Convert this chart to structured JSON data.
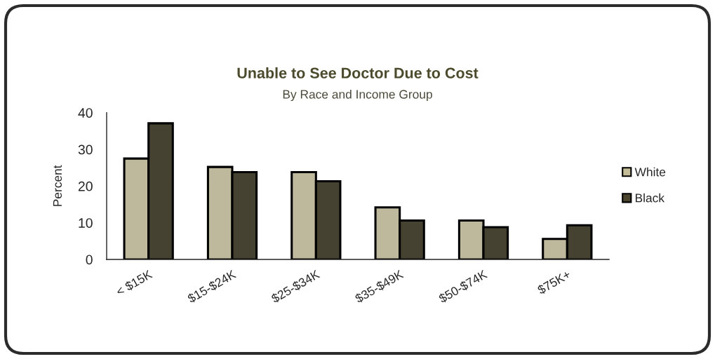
{
  "chart_data": {
    "type": "bar",
    "title": "Unable to See Doctor Due to Cost",
    "subtitle": "By Race and Income Group",
    "ylabel": "Percent",
    "categories": [
      "< $15K",
      "$15-$24K",
      "$25-$34K",
      "$35-$49K",
      "$50-$74K",
      "$75K+"
    ],
    "series": [
      {
        "name": "White",
        "color": "#c4bc96",
        "values": [
          27.5,
          25.2,
          23.8,
          14.2,
          10.6,
          5.6
        ]
      },
      {
        "name": "Black",
        "color": "#4a442d",
        "values": [
          37.1,
          23.8,
          21.3,
          10.6,
          8.8,
          9.3
        ]
      }
    ],
    "ylim": [
      0,
      40
    ],
    "yticks": [
      0,
      10,
      20,
      30,
      40
    ],
    "legend": "right"
  }
}
